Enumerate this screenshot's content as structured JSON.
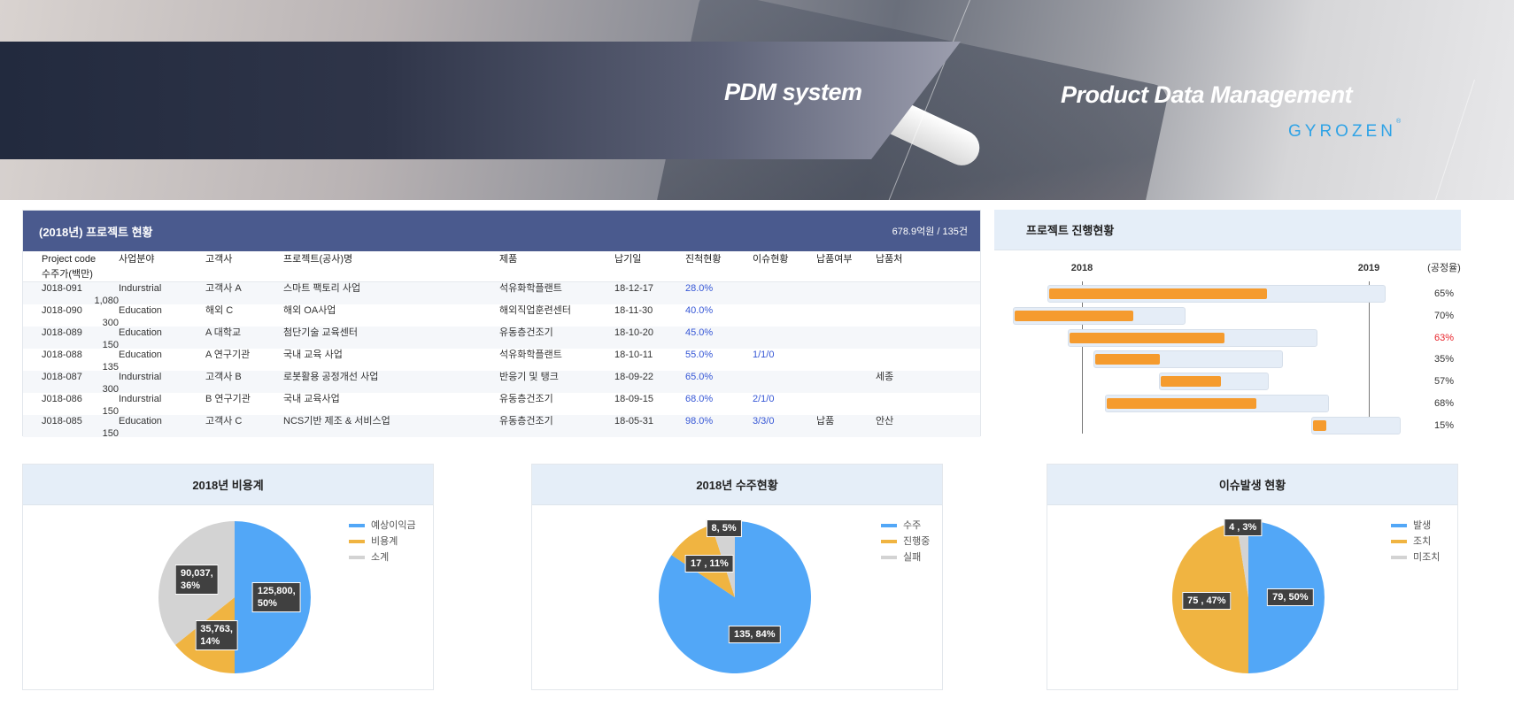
{
  "banner": {
    "title": "PDM system",
    "subtitle": "Product Data Management",
    "logo": "GYROZEN"
  },
  "projects": {
    "title": "(2018년) 프로젝트 현황",
    "summary": "678.9억원 / 135건",
    "columns": [
      "Project code",
      "사업분야",
      "고객사",
      "프로젝트(공사)명",
      "제품",
      "납기일",
      "진척현황",
      "이슈현황",
      "납품여부",
      "납품처",
      "수주가(백만)"
    ],
    "rows": [
      [
        "J018-091",
        "Indurstrial",
        "고객사 A",
        "스마트 팩토리 사업",
        "석유화학플랜트",
        "18-12-17",
        "28.0%",
        "",
        "",
        "",
        "1,080"
      ],
      [
        "J018-090",
        "Education",
        "해외 C",
        "해외 OA사업",
        "해외직업훈련센터",
        "18-11-30",
        "40.0%",
        "",
        "",
        "",
        "300"
      ],
      [
        "J018-089",
        "Education",
        "A 대학교",
        "첨단기술 교육센터",
        "유동층건조기",
        "18-10-20",
        "45.0%",
        "",
        "",
        "",
        "150"
      ],
      [
        "J018-088",
        "Education",
        "A 연구기관",
        "국내 교육 사업",
        "석유화학플랜트",
        "18-10-11",
        "55.0%",
        "1/1/0",
        "",
        "",
        "135"
      ],
      [
        "J018-087",
        "Indurstrial",
        "고객사 B",
        "로봇활용 공정개선 사업",
        "반응기 및 탱크",
        "18-09-22",
        "65.0%",
        "",
        "",
        "세종",
        "300"
      ],
      [
        "J018-086",
        "Indurstrial",
        "B 연구기관",
        "국내 교육사업",
        "유동층건조기",
        "18-09-15",
        "68.0%",
        "2/1/0",
        "",
        "",
        "150"
      ],
      [
        "J018-085",
        "Education",
        "고객사 C",
        "NCS기반 제조 & 서비스업",
        "유동층건조기",
        "18-05-31",
        "98.0%",
        "3/3/0",
        "납품",
        "안산",
        "150"
      ]
    ]
  },
  "gantt": {
    "title": "프로젝트 진행현황",
    "years": [
      "2018",
      "2019"
    ],
    "rate_label": "(공정율)",
    "bars": [
      {
        "start": 2017.88,
        "end": 2019.06,
        "progress": 65,
        "label": "65%",
        "highlight": false
      },
      {
        "start": 2017.76,
        "end": 2018.36,
        "progress": 70,
        "label": "70%",
        "highlight": false
      },
      {
        "start": 2017.95,
        "end": 2018.82,
        "progress": 63,
        "label": "63%",
        "highlight": true
      },
      {
        "start": 2018.04,
        "end": 2018.7,
        "progress": 35,
        "label": "35%",
        "highlight": false
      },
      {
        "start": 2018.27,
        "end": 2018.65,
        "progress": 57,
        "label": "57%",
        "highlight": false
      },
      {
        "start": 2018.08,
        "end": 2018.86,
        "progress": 68,
        "label": "68%",
        "highlight": false
      },
      {
        "start": 2018.8,
        "end": 2019.11,
        "progress": 15,
        "label": "15%",
        "highlight": false
      }
    ],
    "colors": {
      "fill": "#f59b2e",
      "track": "#e5edf7",
      "highlight_text": "#e8242b"
    }
  },
  "chart_data": [
    {
      "type": "pie",
      "title": "2018년 비용계",
      "categories": [
        "예상이익금",
        "비용계",
        "소계"
      ],
      "values": [
        125800,
        35763,
        90037
      ],
      "labels": [
        "125,800,\n50%",
        "35,763,\n14%",
        "90,037,\n36%"
      ],
      "colors": [
        "#52a7f7",
        "#f0b441",
        "#d3d3d3"
      ],
      "legend": "top-right"
    },
    {
      "type": "pie",
      "title": "2018년 수주현황",
      "categories": [
        "수주",
        "진행중",
        "실패"
      ],
      "values": [
        135,
        17,
        8
      ],
      "labels": [
        "135, 84%",
        "17 , 11%",
        "8, 5%"
      ],
      "colors": [
        "#52a7f7",
        "#f0b441",
        "#d3d3d3"
      ],
      "legend": "top-right"
    },
    {
      "type": "pie",
      "title": "이슈발생 현황",
      "categories": [
        "발생",
        "조치",
        "미조치"
      ],
      "values": [
        79,
        75,
        4
      ],
      "labels": [
        "79, 50%",
        "75 , 47%",
        "4 , 3%"
      ],
      "colors": [
        "#52a7f7",
        "#f0b441",
        "#d3d3d3"
      ],
      "legend": "top-right"
    }
  ]
}
